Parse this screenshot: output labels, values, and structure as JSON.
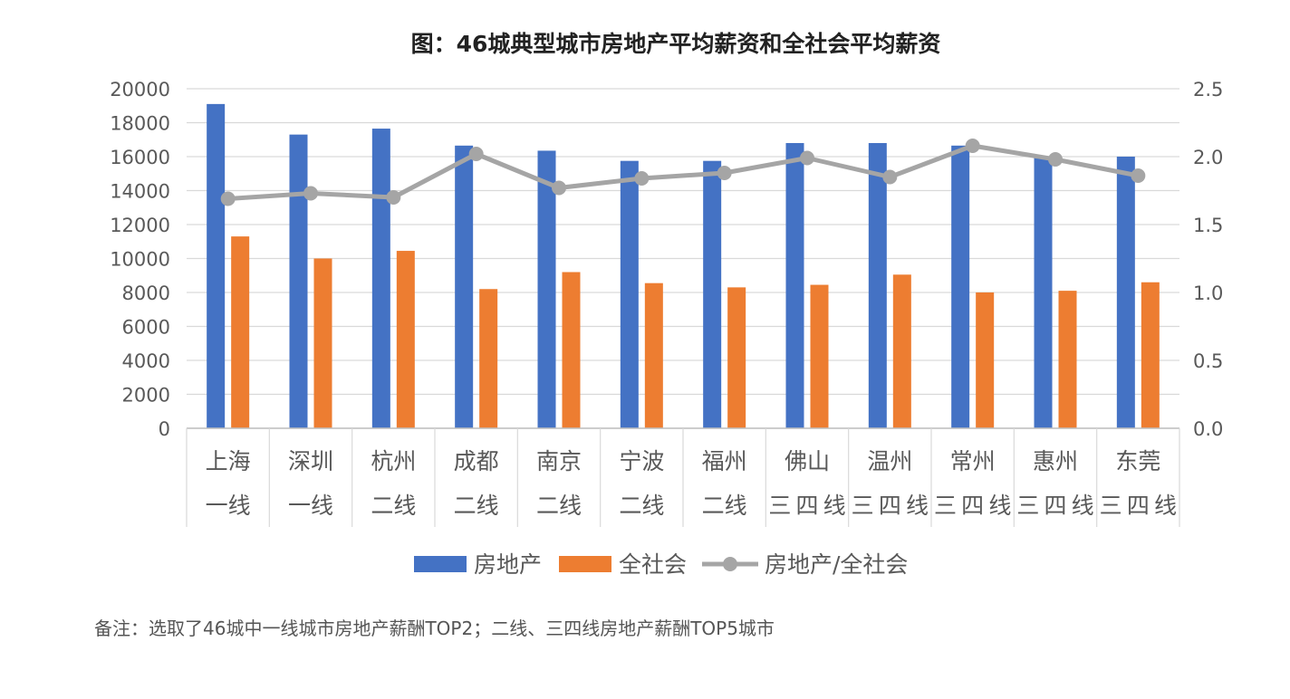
{
  "chart_data": {
    "type": "bar",
    "title": "图：46城典型城市房地产平均薪资和全社会平均薪资",
    "categories": [
      "上海",
      "深圳",
      "杭州",
      "成都",
      "南京",
      "宁波",
      "福州",
      "佛山",
      "温州",
      "常州",
      "惠州",
      "东莞"
    ],
    "tiers": [
      "一线",
      "一线",
      "二线",
      "二线",
      "二线",
      "二线",
      "二线",
      "三四线",
      "三四线",
      "三四线",
      "三四线",
      "三四线"
    ],
    "series": [
      {
        "name": "房地产",
        "type": "bar",
        "axis": "left",
        "color": "#4472C4",
        "values": [
          19100,
          17300,
          17650,
          16650,
          16350,
          15750,
          15750,
          16800,
          16800,
          16650,
          15950,
          16000
        ]
      },
      {
        "name": "全社会",
        "type": "bar",
        "axis": "left",
        "color": "#ED7D31",
        "values": [
          11300,
          10000,
          10450,
          8200,
          9200,
          8550,
          8300,
          8450,
          9050,
          8000,
          8100,
          8600
        ]
      },
      {
        "name": "房地产/全社会",
        "type": "line",
        "axis": "right",
        "color": "#A5A5A5",
        "values": [
          1.69,
          1.73,
          1.7,
          2.02,
          1.77,
          1.84,
          1.88,
          1.99,
          1.85,
          2.08,
          1.98,
          1.86
        ]
      }
    ],
    "y_left": {
      "min": 0,
      "max": 20000,
      "step": 2000,
      "ticks": [
        "0",
        "2000",
        "4000",
        "6000",
        "8000",
        "10000",
        "12000",
        "14000",
        "16000",
        "18000",
        "20000"
      ]
    },
    "y_right": {
      "min": 0,
      "max": 2.5,
      "step": 0.5,
      "ticks": [
        "0.0",
        "0.5",
        "1.0",
        "1.5",
        "2.0",
        "2.5"
      ]
    },
    "grid": true,
    "legend_position": "bottom"
  },
  "footnote": "备注：选取了46城中一线城市房地产薪酬TOP2；二线、三四线房地产薪酬TOP5城市"
}
